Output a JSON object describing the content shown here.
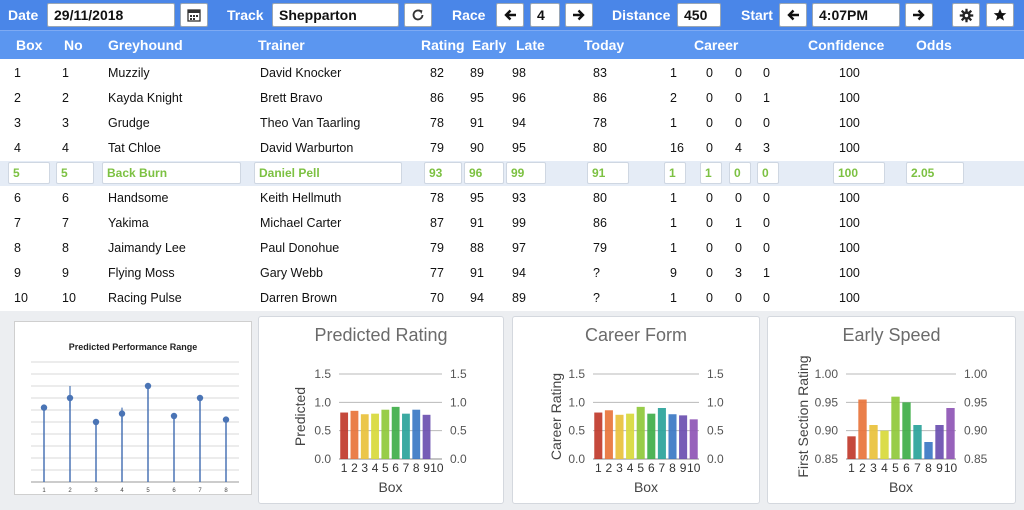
{
  "toolbar": {
    "date_label": "Date",
    "date_value": "29/11/2018",
    "track_label": "Track",
    "track_value": "Shepparton",
    "race_label": "Race",
    "race_value": "4",
    "distance_label": "Distance",
    "distance_value": "450",
    "start_label": "Start",
    "start_value": "4:07PM"
  },
  "icons": {
    "calendar": "calendar-icon",
    "refresh": "refresh-icon",
    "race_prev": "arrow-left-icon",
    "race_next": "arrow-right-icon",
    "start_prev": "arrow-left-icon",
    "start_next": "arrow-right-icon",
    "settings": "gear-icon",
    "favorite": "star-icon"
  },
  "table": {
    "headers": [
      "Box",
      "No",
      "Greyhound",
      "Trainer",
      "Rating",
      "Early",
      "Late",
      "Today",
      "Career",
      "Confidence",
      "Odds"
    ],
    "rows": [
      {
        "box": "1",
        "no": "1",
        "greyhound": "Muzzily",
        "trainer": "David Knocker",
        "rating": "82",
        "early": "89",
        "late": "98",
        "today": "83",
        "career": [
          "1",
          "0",
          "0",
          "0"
        ],
        "confidence": "100",
        "odds": ""
      },
      {
        "box": "2",
        "no": "2",
        "greyhound": "Kayda Knight",
        "trainer": "Brett Bravo",
        "rating": "86",
        "early": "95",
        "late": "96",
        "today": "86",
        "career": [
          "2",
          "0",
          "0",
          "1"
        ],
        "confidence": "100",
        "odds": ""
      },
      {
        "box": "3",
        "no": "3",
        "greyhound": "Grudge",
        "trainer": "Theo Van Taarling",
        "rating": "78",
        "early": "91",
        "late": "94",
        "today": "78",
        "career": [
          "1",
          "0",
          "0",
          "0"
        ],
        "confidence": "100",
        "odds": ""
      },
      {
        "box": "4",
        "no": "4",
        "greyhound": "Tat Chloe",
        "trainer": "David Warburton",
        "rating": "79",
        "early": "90",
        "late": "95",
        "today": "80",
        "career": [
          "16",
          "0",
          "4",
          "3"
        ],
        "confidence": "100",
        "odds": ""
      },
      {
        "box": "5",
        "no": "5",
        "greyhound": "Back Burn",
        "trainer": "Daniel Pell",
        "rating": "93",
        "early": "96",
        "late": "99",
        "today": "91",
        "career": [
          "1",
          "1",
          "0",
          "0"
        ],
        "confidence": "100",
        "odds": "2.05",
        "selected": true
      },
      {
        "box": "6",
        "no": "6",
        "greyhound": "Handsome",
        "trainer": "Keith Hellmuth",
        "rating": "78",
        "early": "95",
        "late": "93",
        "today": "80",
        "career": [
          "1",
          "0",
          "0",
          "0"
        ],
        "confidence": "100",
        "odds": ""
      },
      {
        "box": "7",
        "no": "7",
        "greyhound": "Yakima",
        "trainer": "Michael Carter",
        "rating": "87",
        "early": "91",
        "late": "99",
        "today": "86",
        "career": [
          "1",
          "0",
          "1",
          "0"
        ],
        "confidence": "100",
        "odds": ""
      },
      {
        "box": "8",
        "no": "8",
        "greyhound": "Jaimandy Lee",
        "trainer": "Paul Donohue",
        "rating": "79",
        "early": "88",
        "late": "97",
        "today": "79",
        "career": [
          "1",
          "0",
          "0",
          "0"
        ],
        "confidence": "100",
        "odds": ""
      },
      {
        "box": "9",
        "no": "9",
        "greyhound": "Flying Moss",
        "trainer": "Gary Webb",
        "rating": "77",
        "early": "91",
        "late": "94",
        "today": "?",
        "career": [
          "9",
          "0",
          "3",
          "1"
        ],
        "confidence": "100",
        "odds": ""
      },
      {
        "box": "10",
        "no": "10",
        "greyhound": "Racing Pulse",
        "trainer": "Darren Brown",
        "rating": "70",
        "early": "94",
        "late": "89",
        "today": "?",
        "career": [
          "1",
          "0",
          "0",
          "0"
        ],
        "confidence": "100",
        "odds": ""
      }
    ]
  },
  "colors": {
    "toolbar_bg": "#4a86e8",
    "header_bg": "#5b96f0",
    "selected_row_bg": "#e5ecf6",
    "selected_text": "#7cc142",
    "bar_gradient": [
      "#c0392b",
      "#e8743b",
      "#e9c13b",
      "#d8d93b",
      "#8fc93a",
      "#3fae49",
      "#2aa39a",
      "#3b78c4",
      "#6a4fb0",
      "#8e55b5"
    ]
  },
  "chart_data": [
    {
      "type": "scatter",
      "title": "Predicted Performance Range",
      "x": [
        "1",
        "2",
        "3",
        "4",
        "5",
        "6",
        "7",
        "8"
      ],
      "values": [
        0.62,
        0.7,
        0.5,
        0.57,
        0.8,
        0.55,
        0.7,
        0.52
      ],
      "range_low": [
        null,
        0.62,
        null,
        0.5,
        null,
        null,
        null,
        null
      ],
      "range_high": [
        null,
        0.8,
        null,
        0.62,
        null,
        null,
        null,
        null
      ],
      "ylim": [
        0,
        1
      ],
      "grid": true,
      "xlabel": "",
      "ylabel": ""
    },
    {
      "type": "bar",
      "title": "Predicted Rating",
      "categories": [
        "1",
        "2",
        "3",
        "4",
        "5",
        "6",
        "7",
        "8",
        "9",
        "10"
      ],
      "values": [
        0.82,
        0.85,
        0.79,
        0.8,
        0.87,
        0.92,
        0.8,
        0.87,
        0.78,
        null
      ],
      "xlabel": "Box",
      "ylabel": "Predicted",
      "ylim": [
        0,
        1.5
      ],
      "ticks": [
        "0.0",
        "0.5",
        "1.0",
        "1.5"
      ],
      "secondary_axis": true,
      "grid": true
    },
    {
      "type": "bar",
      "title": "Career Form",
      "categories": [
        "1",
        "2",
        "3",
        "4",
        "5",
        "6",
        "7",
        "8",
        "9",
        "10"
      ],
      "values": [
        0.82,
        0.86,
        0.78,
        0.8,
        0.92,
        0.8,
        0.9,
        0.79,
        0.77,
        0.7
      ],
      "xlabel": "Box",
      "ylabel": "Career Rating",
      "ylim": [
        0,
        1.5
      ],
      "ticks": [
        "0.0",
        "0.5",
        "1.0",
        "1.5"
      ],
      "secondary_axis": true,
      "grid": true
    },
    {
      "type": "bar",
      "title": "Early Speed",
      "categories": [
        "1",
        "2",
        "3",
        "4",
        "5",
        "6",
        "7",
        "8",
        "9",
        "10"
      ],
      "values": [
        0.89,
        0.955,
        0.91,
        0.9,
        0.96,
        0.95,
        0.91,
        0.88,
        0.91,
        0.94
      ],
      "xlabel": "Box",
      "ylabel": "First Section Rating",
      "ylim": [
        0.85,
        1.0
      ],
      "ticks": [
        "0.85",
        "0.90",
        "0.95",
        "1.00"
      ],
      "secondary_axis": true,
      "grid": true
    }
  ]
}
